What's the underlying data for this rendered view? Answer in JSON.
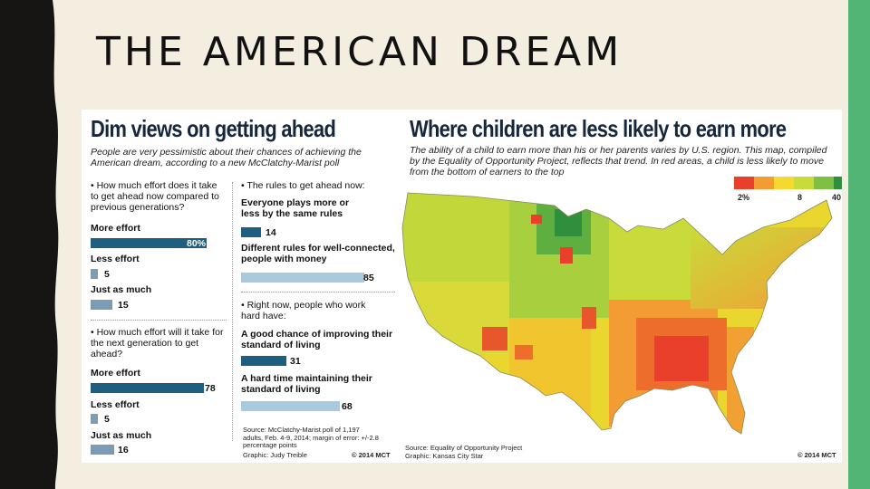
{
  "slide": {
    "title": "THE AMERICAN DREAM"
  },
  "colors": {
    "left_band": "#171414",
    "right_band": "#52b576",
    "slide_bg": "#f3eedf",
    "bar_dark": "#1e5e80",
    "bar_light": "#a9c9dd",
    "bar_mid": "#7d9cb3"
  },
  "poll": {
    "title": "Dim views on getting ahead",
    "subtitle": "People are very pessimistic about their chances of achieving the American dream, according to a new McClatchy-Marist poll",
    "q1": "• How much effort does it take to get ahead now compared to previous generations?",
    "q2": "• How much effort will it take for the next generation to get ahead?",
    "q3": "• The rules to get ahead now:",
    "q4": "• Right now, people who work hard have:",
    "source": "Source: McClatchy-Marist poll of 1,197 adults, Feb. 4-9, 2014; margin of error: +/-2.8 percentage points",
    "graphic": "Graphic: Judy Treible",
    "copyright": "© 2014 MCT"
  },
  "chart_data": [
    {
      "type": "bar",
      "title": "How much effort does it take to get ahead now compared to previous generations?",
      "categories": [
        "More effort",
        "Less effort",
        "Just as much"
      ],
      "values": [
        80,
        5,
        15
      ],
      "value_labels": [
        "80%",
        "5",
        "15"
      ],
      "unit": "%"
    },
    {
      "type": "bar",
      "title": "How much effort will it take for the next generation to get ahead?",
      "categories": [
        "More effort",
        "Less effort",
        "Just as much"
      ],
      "values": [
        78,
        5,
        16
      ],
      "value_labels": [
        "78",
        "5",
        "16"
      ]
    },
    {
      "type": "bar",
      "title": "The rules to get ahead now",
      "categories": [
        "Everyone plays more or less by the same rules",
        "Different rules for well-connected, people with money"
      ],
      "values": [
        14,
        85
      ],
      "value_labels": [
        "14",
        "85"
      ]
    },
    {
      "type": "bar",
      "title": "Right now, people who work hard have",
      "categories": [
        "A good chance of improving their standard of living",
        "A hard time maintaining their standard of living"
      ],
      "values": [
        31,
        68
      ],
      "value_labels": [
        "31",
        "68"
      ]
    },
    {
      "type": "heatmap",
      "title": "Where children are less likely to earn more",
      "subtitle": "The ability of a child to earn more than his or her parents varies by U.S. region. This map, compiled by the Equality of Opportunity Project, reflects that trend. In red areas, a child is less likely to move from the bottom of earners to the top",
      "legend": {
        "labels": [
          "2%",
          "8",
          "40"
        ],
        "colors": [
          "#e8402a",
          "#f39c33",
          "#f6d92e",
          "#c9db3a",
          "#7fbf41",
          "#2f8f3c",
          "#1b6e33"
        ]
      },
      "source": "Source: Equality of Opportunity Project",
      "graphic": "Graphic: Kansas City Star",
      "copyright": "© 2014 MCT"
    }
  ]
}
